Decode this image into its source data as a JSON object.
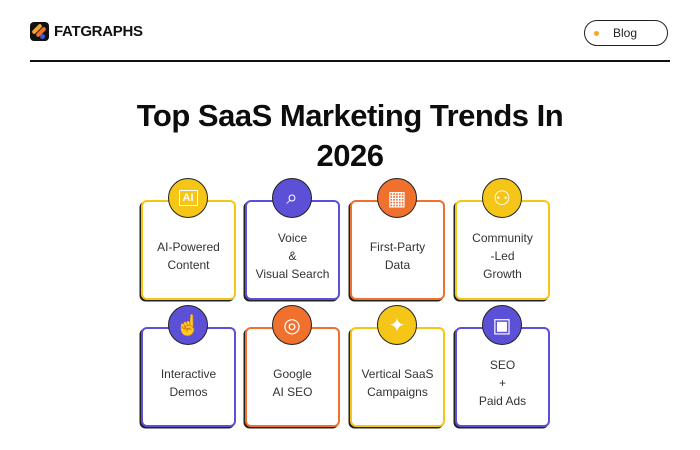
{
  "header": {
    "brand": "FATGRAPHS",
    "blog_label": "Blog"
  },
  "page_title": "Top SaaS Marketing Trends In 2026",
  "colors": {
    "yellow": "#F5C518",
    "purple": "#5B50D6",
    "orange": "#F0702E"
  },
  "cards": [
    {
      "label": "AI-Powered\nContent",
      "icon": "ai-chip-icon",
      "color": "#F5C518"
    },
    {
      "label": "Voice\n&\nVisual Search",
      "icon": "voice-search-icon",
      "color": "#5B50D6"
    },
    {
      "label": "First-Party\nData",
      "icon": "analytics-dashboard-icon",
      "color": "#F0702E"
    },
    {
      "label": "Community\n-Led\nGrowth",
      "icon": "community-growth-icon",
      "color": "#F5C518"
    },
    {
      "label": "Interactive\nDemos",
      "icon": "touch-hand-icon",
      "color": "#5B50D6"
    },
    {
      "label": "Google\nAI SEO",
      "icon": "google-ai-icon",
      "color": "#F0702E"
    },
    {
      "label": "Vertical SaaS\nCampaigns",
      "icon": "campaign-icon",
      "color": "#F5C518"
    },
    {
      "label": "SEO\n+\nPaid Ads",
      "icon": "wallet-ads-icon",
      "color": "#5B50D6"
    }
  ]
}
